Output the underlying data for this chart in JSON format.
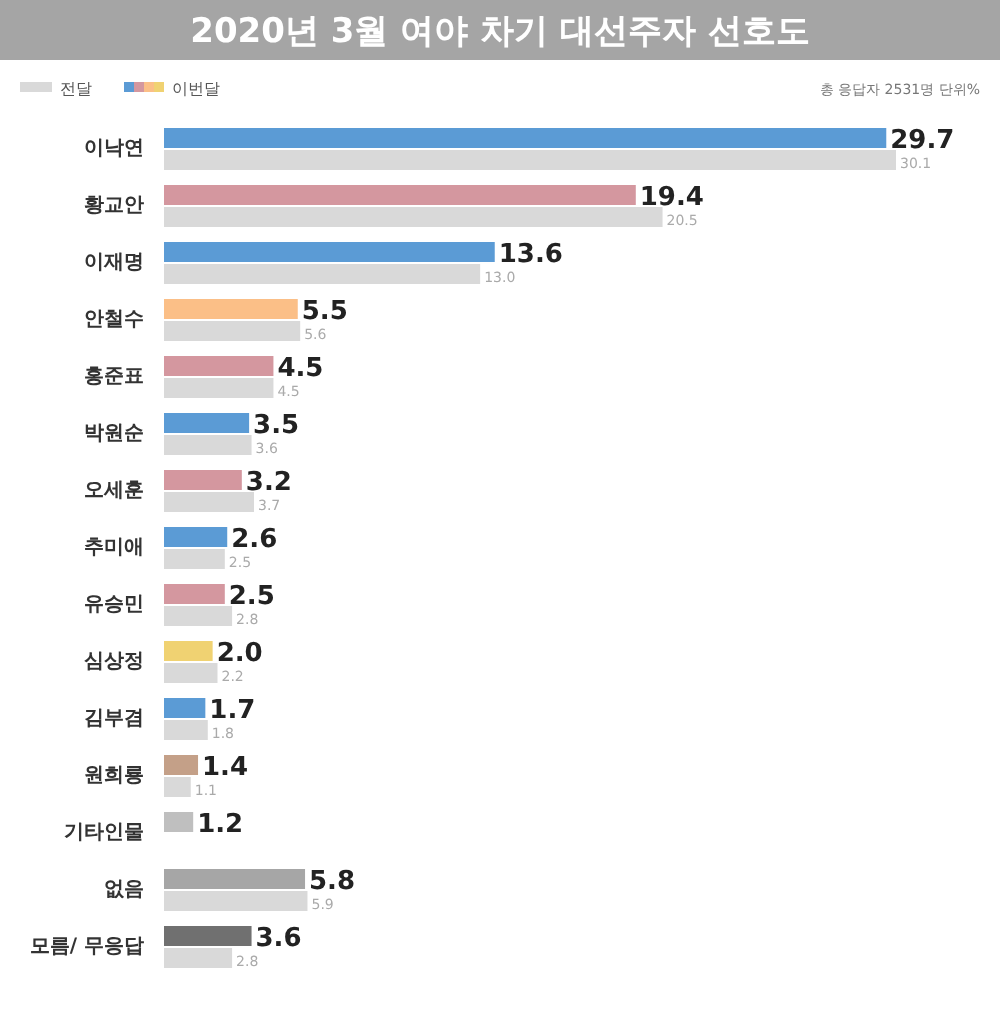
{
  "chart_data": {
    "type": "bar",
    "orientation": "horizontal",
    "title": "2020년 3월 여야 차기 대선주자 선호도",
    "annotations": [
      "총 응답자 2531명  단위%"
    ],
    "categories": [
      "이낙연",
      "황교안",
      "이재명",
      "안철수",
      "홍준표",
      "박원순",
      "오세훈",
      "추미애",
      "유승민",
      "심상정",
      "김부겸",
      "원희룡",
      "기타인물",
      "없음",
      "모름/ 무응답"
    ],
    "series": [
      {
        "name": "이번달",
        "colors": [
          "#5b9bd5",
          "#d4979f",
          "#5b9bd5",
          "#fbbf87",
          "#d4979f",
          "#5b9bd5",
          "#d4979f",
          "#5b9bd5",
          "#d4979f",
          "#f0d272",
          "#5b9bd5",
          "#c4a088",
          "#bfbfbf",
          "#a6a6a6",
          "#707070"
        ],
        "values": [
          29.7,
          19.4,
          13.6,
          5.5,
          4.5,
          3.5,
          3.2,
          2.6,
          2.5,
          2.0,
          1.7,
          1.4,
          1.2,
          5.8,
          3.6
        ],
        "value_labels": [
          "29.7",
          "19.4",
          "13.6",
          "5.5",
          "4.5",
          "3.5",
          "3.2",
          "2.6",
          "2.5",
          "2.0",
          "1.7",
          "1.4",
          "1.2",
          "5.8",
          "3.6"
        ]
      },
      {
        "name": "전달",
        "color": "#d9d9d9",
        "values": [
          30.1,
          20.5,
          13.0,
          5.6,
          4.5,
          3.6,
          3.7,
          2.5,
          2.8,
          2.2,
          1.8,
          1.1,
          null,
          5.9,
          2.8
        ],
        "value_labels": [
          "30.1",
          "20.5",
          "13.0",
          "5.6",
          "4.5",
          "3.6",
          "3.7",
          "2.5",
          "2.8",
          "2.2",
          "1.8",
          "1.1",
          null,
          "5.9",
          "2.8"
        ]
      }
    ],
    "legend": "top left"
  }
}
